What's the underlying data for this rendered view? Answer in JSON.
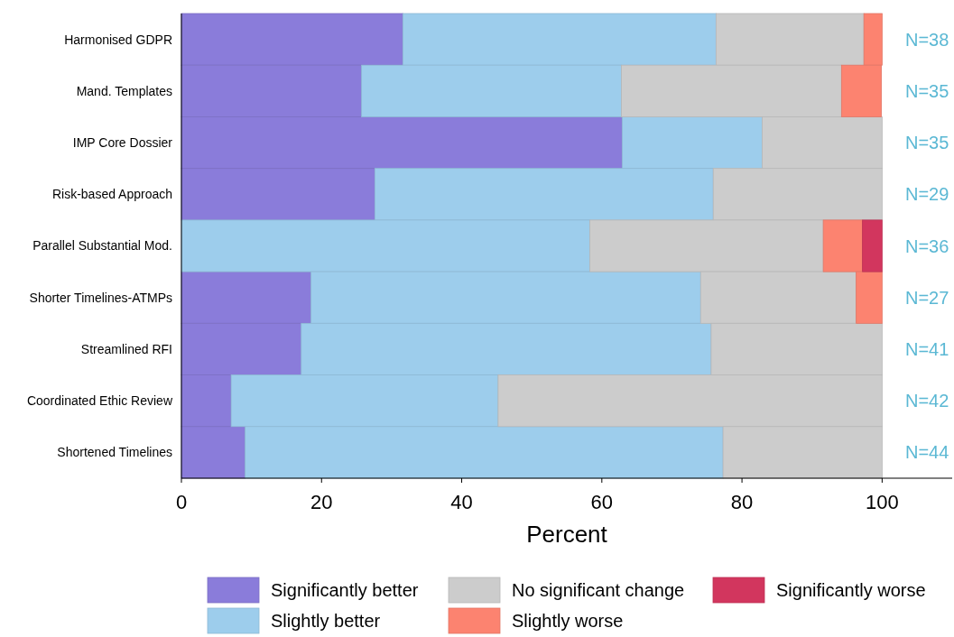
{
  "chart_data": {
    "type": "bar",
    "orientation": "horizontal",
    "stacked": true,
    "categories": [
      "Harmonised GDPR",
      "Mand. Templates",
      "IMP Core Dossier",
      "Risk-based Approach",
      "Parallel Substantial Mod.",
      "Shorter Timelines-ATMPs",
      "Streamlined RFI",
      "Coordinated Ethic Review",
      "Shortened Timelines"
    ],
    "series": [
      {
        "name": "Significantly better",
        "color": "#8a7cda",
        "values": [
          31.6,
          25.7,
          62.9,
          27.6,
          0,
          18.5,
          17.1,
          7.1,
          9.1
        ]
      },
      {
        "name": "Slightly better",
        "color": "#9dcdec",
        "values": [
          44.7,
          37.1,
          20.0,
          48.3,
          58.3,
          55.6,
          58.5,
          38.1,
          68.2
        ]
      },
      {
        "name": "No significant change",
        "color": "#cccccc",
        "values": [
          21.1,
          31.4,
          17.1,
          24.1,
          33.3,
          22.2,
          24.4,
          54.8,
          22.7
        ]
      },
      {
        "name": "Slightly worse",
        "color": "#fc8370",
        "values": [
          2.6,
          5.7,
          0,
          0,
          5.6,
          3.7,
          0,
          0,
          0
        ]
      },
      {
        "name": "Significantly worse",
        "color": "#d2365e",
        "values": [
          0,
          0,
          0,
          0,
          2.8,
          0,
          0,
          0,
          0
        ]
      }
    ],
    "xlabel": "Percent",
    "xlim": [
      0,
      110
    ],
    "xticks": [
      0,
      20,
      40,
      60,
      80,
      100
    ],
    "grid": false,
    "legend": "bottom",
    "annotations": [
      "N=38",
      "N=35",
      "N=35",
      "N=29",
      "N=36",
      "N=27",
      "N=41",
      "N=42",
      "N=44"
    ]
  }
}
